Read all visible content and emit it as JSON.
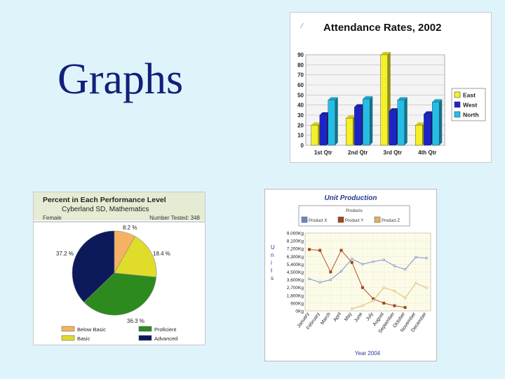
{
  "slide": {
    "title": "Graphs"
  },
  "chart_data": [
    {
      "type": "bar",
      "title": "Attendance Rates, 2002",
      "categories": [
        "1st Qtr",
        "2nd Qtr",
        "3rd Qtr",
        "4th Qtr"
      ],
      "series": [
        {
          "name": "East",
          "values": [
            20,
            27,
            90,
            20
          ],
          "color": "#f4f02a"
        },
        {
          "name": "West",
          "values": [
            30,
            38,
            34,
            31
          ],
          "color": "#1c24c8"
        },
        {
          "name": "North",
          "values": [
            45,
            46,
            45,
            43
          ],
          "color": "#23bde6"
        }
      ],
      "ylim": [
        0,
        90
      ],
      "yticks": [
        0,
        10,
        20,
        30,
        40,
        50,
        60,
        70,
        80,
        90
      ],
      "legend": "right",
      "grid": true
    },
    {
      "type": "pie",
      "title": "Percent in Each Performance Level",
      "subtitle": "Cyberland SD, Mathematics",
      "header_left": "Female",
      "header_right": "Number Tested: 348",
      "slices": [
        {
          "label": "Below Basic",
          "value": 8.2,
          "label_text": "8.2 %",
          "color": "#f6b262"
        },
        {
          "label": "Basic",
          "value": 18.4,
          "label_text": "18.4 %",
          "color": "#dfdc2a"
        },
        {
          "label": "Proficient",
          "value": 36.3,
          "label_text": "36.3 %",
          "color": "#2d8a1f"
        },
        {
          "label": "Advanced",
          "value": 37.2,
          "label_text": "37.2 %",
          "color": "#0c1a5c"
        }
      ],
      "legend": "bottom"
    },
    {
      "type": "line",
      "title": "Unit Production",
      "legend_title": "Products",
      "xlabel": "Year 2004",
      "ylabel": "Units",
      "categories": [
        "January",
        "February",
        "March",
        "April",
        "May",
        "June",
        "July",
        "August",
        "September",
        "October",
        "November",
        "December"
      ],
      "yticks": [
        "0Kg",
        "900Kg",
        "1,800Kg",
        "2,700Kg",
        "3,600Kg",
        "4,500Kg",
        "5,400Kg",
        "6,300Kg",
        "7,200Kg",
        "8,100Kg",
        "9,000Kg"
      ],
      "ylim": [
        0,
        9000
      ],
      "series": [
        {
          "name": "Product X",
          "color": "#6f82c8",
          "values": [
            3700,
            3300,
            3600,
            4600,
            6000,
            5400,
            5700,
            5900,
            5200,
            4800,
            6200,
            6100
          ]
        },
        {
          "name": "Product Y",
          "color": "#a4461a",
          "values": [
            7100,
            7000,
            4500,
            7000,
            5600,
            2700,
            1400,
            900,
            600,
            400,
            null,
            null
          ]
        },
        {
          "name": "Product Z",
          "color": "#e0b060",
          "values": [
            null,
            null,
            null,
            null,
            250,
            600,
            1200,
            2700,
            2300,
            1500,
            3200,
            2700
          ]
        }
      ],
      "grid": true
    }
  ]
}
